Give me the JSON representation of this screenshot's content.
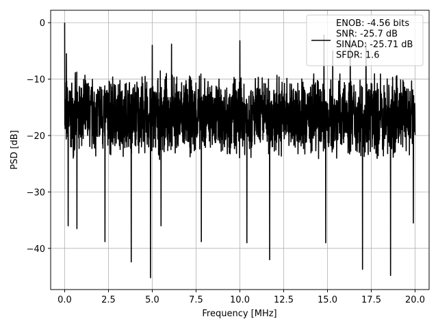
{
  "chart_data": {
    "type": "line",
    "title": "",
    "xlabel": "Frequency [MHz]",
    "ylabel": "PSD [dB]",
    "xlim": [
      -0.8,
      20.8
    ],
    "ylim": [
      -47.3,
      2.2
    ],
    "grid": true,
    "legend_placement": "top-right",
    "x_ticks": [
      0.0,
      2.5,
      5.0,
      7.5,
      10.0,
      12.5,
      15.0,
      17.5,
      20.0
    ],
    "x_tick_labels": [
      "0.0",
      "2.5",
      "5.0",
      "7.5",
      "10.0",
      "12.5",
      "15.0",
      "17.5",
      "20.0"
    ],
    "y_ticks": [
      0,
      -10,
      -20,
      -30,
      -40
    ],
    "y_tick_labels": [
      "0",
      "−10",
      "−20",
      "−30",
      "−40"
    ],
    "series": [
      {
        "name": "ENOB: -4.56 bits\nSNR: -25.7 dB\nSINAD: -25.71 dB\nSFDR: 1.6",
        "color": "#000000",
        "x_range": [
          0.0,
          20.0
        ],
        "baseline_db": -16.5,
        "typical_peak_db": -10.0,
        "typical_trough_db": -26.0,
        "peaks": [
          {
            "x": 0.0,
            "y": 0.0
          },
          {
            "x": 0.1,
            "y": -5.5
          },
          {
            "x": 5.0,
            "y": -4.0
          },
          {
            "x": 6.1,
            "y": -3.8
          },
          {
            "x": 10.0,
            "y": -3.2
          },
          {
            "x": 14.8,
            "y": -2.2
          },
          {
            "x": 15.3,
            "y": -5.0
          },
          {
            "x": 16.3,
            "y": -1.0
          },
          {
            "x": 17.2,
            "y": -3.8
          }
        ],
        "troughs": [
          {
            "x": 0.2,
            "y": -36.0
          },
          {
            "x": 0.7,
            "y": -36.5
          },
          {
            "x": 2.3,
            "y": -38.8
          },
          {
            "x": 3.8,
            "y": -42.4
          },
          {
            "x": 4.9,
            "y": -45.2
          },
          {
            "x": 5.5,
            "y": -36.0
          },
          {
            "x": 7.8,
            "y": -38.8
          },
          {
            "x": 10.4,
            "y": -39.0
          },
          {
            "x": 11.7,
            "y": -42.0
          },
          {
            "x": 14.9,
            "y": -39.0
          },
          {
            "x": 17.0,
            "y": -43.7
          },
          {
            "x": 18.6,
            "y": -44.8
          },
          {
            "x": 19.9,
            "y": -35.5
          }
        ]
      }
    ]
  }
}
